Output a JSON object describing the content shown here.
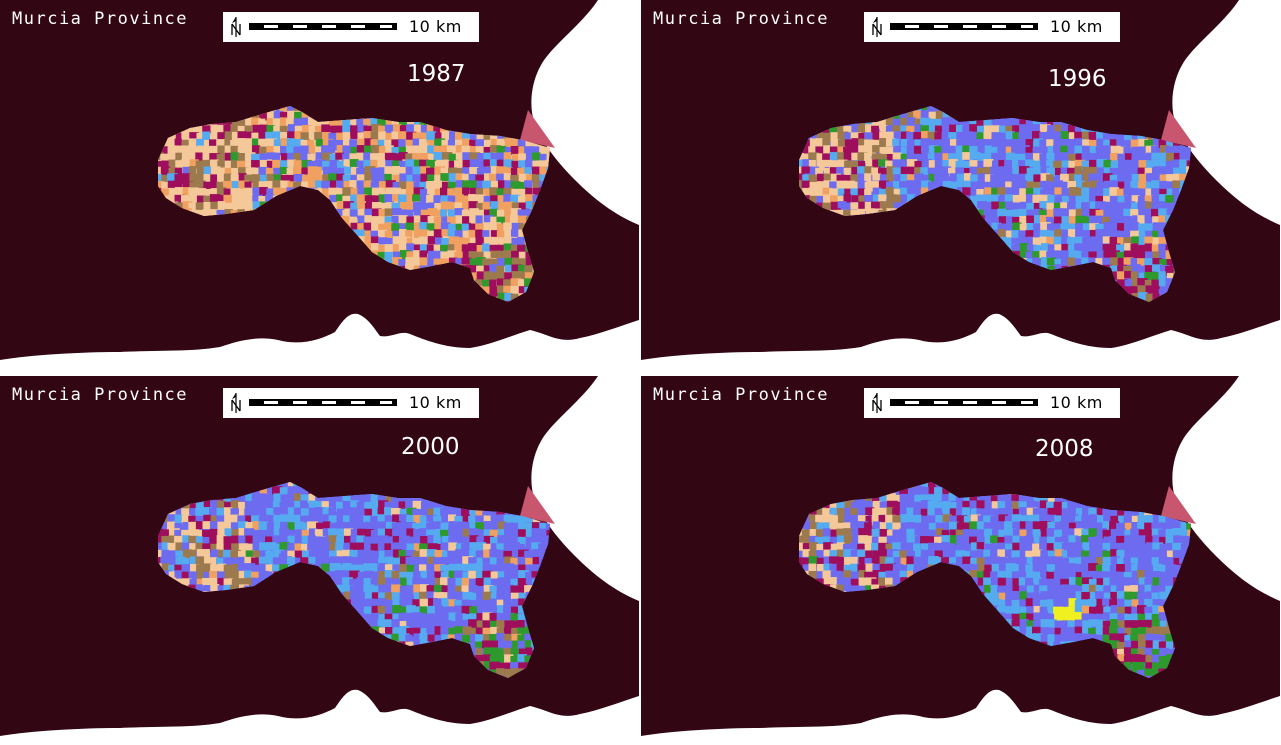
{
  "panels": [
    {
      "region": "Murcia Province",
      "scale_label": "10 km",
      "year": "1987",
      "cover": {
        "crop": 0.25,
        "cultivated": 0.45,
        "urban": 0.1,
        "forest": 0.12
      }
    },
    {
      "region": "Murcia Province",
      "scale_label": "10 km",
      "year": "1996",
      "cover": {
        "crop": 0.65,
        "cultivated": 0.12,
        "urban": 0.08,
        "forest": 0.1
      }
    },
    {
      "region": "Murcia Province",
      "scale_label": "10 km",
      "year": "2000",
      "cover": {
        "crop": 0.75,
        "cultivated": 0.07,
        "urban": 0.09,
        "forest": 0.06
      }
    },
    {
      "region": "Murcia Province",
      "scale_label": "10 km",
      "year": "2008",
      "cover": {
        "crop": 0.72,
        "cultivated": 0.04,
        "urban": 0.14,
        "forest": 0.06
      }
    }
  ],
  "colors": {
    "background": "#330614",
    "sea": "#ffffff",
    "fallow": "#f5c89a",
    "orange_crop": "#f0a060",
    "irrigated_blue": "#6d6cf0",
    "irrigated_light": "#55aaf0",
    "urban": "#9e0e5c",
    "scrub": "#9c7a4e",
    "forest": "#2e9a2e",
    "yellow": "#f0f020",
    "port": "#c9566f"
  }
}
